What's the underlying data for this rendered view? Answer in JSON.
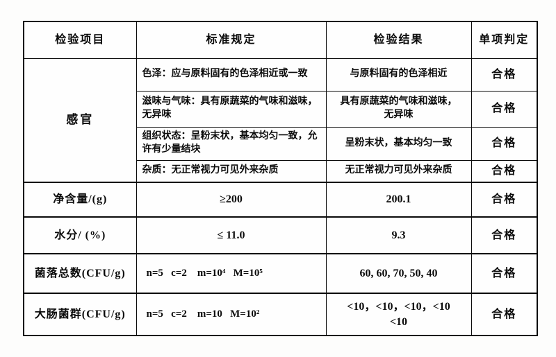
{
  "table": {
    "columns": [
      "检验项目",
      "标准规定",
      "检验结果",
      "单项判定"
    ],
    "sensory": {
      "label": "感官",
      "subrows": [
        {
          "standard": "色泽：应与原料固有的色泽相近或一致",
          "result": "与原料固有的色泽相近",
          "verdict": "合格"
        },
        {
          "standard": "滋味与气味：具有原蔬菜的气味和滋味，无异味",
          "result": "具有原蔬菜的气味和滋味，\n无异味",
          "verdict": "合格"
        },
        {
          "standard": "组织状态：呈粉末状，基本均匀一致，允许有少量结块",
          "result": "呈粉末状，基本均匀一致",
          "verdict": "合格"
        },
        {
          "standard": "杂质：无正常视力可见外来杂质",
          "result": "无正常视力可见外来杂质",
          "verdict": "合格"
        }
      ]
    },
    "rows": [
      {
        "item": "净含量/(g)",
        "standard": "≥200",
        "result": "200.1",
        "verdict": "合格"
      },
      {
        "item": "水分/ (%)",
        "standard": "≤ 11.0",
        "result": "9.3",
        "verdict": "合格"
      },
      {
        "item": "菌落总数(CFU/g)",
        "standard": "n=5   c=2    m=10⁴   M=10⁵",
        "result": "60, 60, 70, 50, 40",
        "verdict": "合格"
      },
      {
        "item": "大肠菌群(CFU/g)",
        "standard": "n=5   c=2    m=10   M=10²",
        "result": "<10，<10，<10，<10\n<10",
        "verdict": "合格"
      }
    ]
  }
}
